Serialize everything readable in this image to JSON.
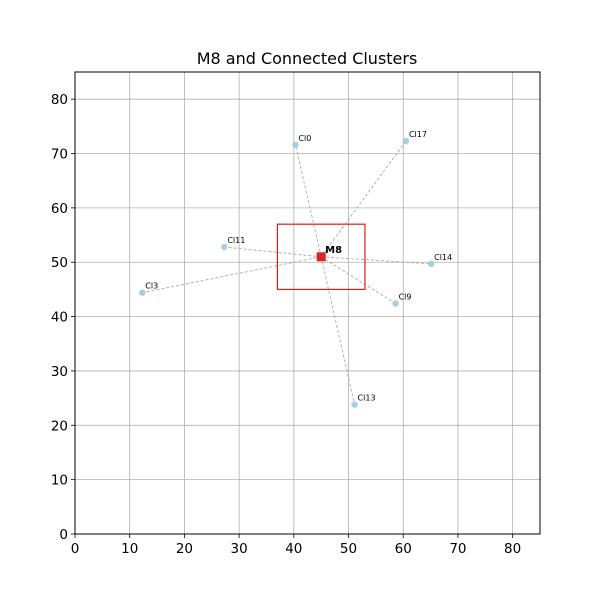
{
  "chart_data": {
    "type": "scatter",
    "title": "M8 and Connected Clusters",
    "xlabel": "",
    "ylabel": "",
    "xlim": [
      0,
      85
    ],
    "ylim": [
      0,
      85
    ],
    "xticks": [
      0,
      10,
      20,
      30,
      40,
      50,
      60,
      70,
      80
    ],
    "yticks": [
      0,
      10,
      20,
      30,
      40,
      50,
      60,
      70,
      80
    ],
    "grid": true,
    "center": {
      "label": "M8",
      "x": 45.0,
      "y": 51.0,
      "color": "#d62728"
    },
    "box": {
      "x0": 37.0,
      "x1": 53.0,
      "y0": 45.0,
      "y1": 57.0,
      "color": "#e31a1c"
    },
    "clusters": [
      {
        "label": "Cl0",
        "x": 40.3,
        "y": 71.6
      },
      {
        "label": "Cl17",
        "x": 60.5,
        "y": 72.3
      },
      {
        "label": "Cl11",
        "x": 27.3,
        "y": 52.8
      },
      {
        "label": "Cl14",
        "x": 65.1,
        "y": 49.7
      },
      {
        "label": "Cl3",
        "x": 12.3,
        "y": 44.4
      },
      {
        "label": "Cl9",
        "x": 58.6,
        "y": 42.4
      },
      {
        "label": "Cl13",
        "x": 51.1,
        "y": 23.8
      }
    ],
    "colors": {
      "cluster": "#a6cee3",
      "edge": "#aaaaaa",
      "grid": "#b0b0b0",
      "axis": "#000000"
    }
  }
}
